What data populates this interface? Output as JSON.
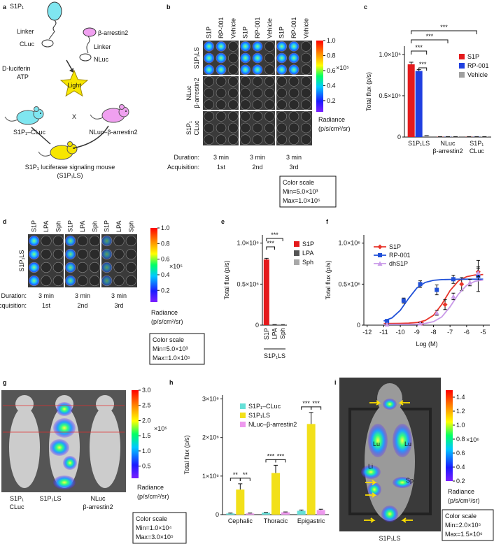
{
  "panel_labels": [
    "a",
    "b",
    "c",
    "d",
    "e",
    "f",
    "g",
    "h",
    "i"
  ],
  "a": {
    "texts": [
      "S1P₁",
      "Linker",
      "β-arrestin2",
      "CLuc",
      "Linker",
      "NLuc",
      "D-luciferin",
      "ATP",
      "Light",
      "S1P₁–CLuc",
      "X",
      "NLuc–β-arrestin2",
      "S1P₁ luciferase signaling mouse",
      "(S1P₁LS)"
    ]
  },
  "b": {
    "columns": [
      "S1P",
      "RP-001",
      "Vehicle"
    ],
    "rows": [
      [
        "S1P₁LS"
      ],
      [
        "NLuc",
        "β-arrestin2"
      ],
      [
        "S1P₁",
        "CLuc"
      ]
    ],
    "duration_label": "Duration:",
    "durations": [
      "3 min",
      "3 min",
      "3 min"
    ],
    "acquisition_label": "Acquisition:",
    "acquisitions": [
      "1st",
      "2nd",
      "3rd"
    ],
    "colorbar": {
      "lim": [
        0.05,
        1
      ],
      "ticks": [
        {
          "value": 1,
          "label": "1.0"
        },
        0.8,
        0.6,
        0.4,
        0.2
      ],
      "multiplier": "×10⁵",
      "label": [
        "Radiance",
        "(p/s/cm²/sr)"
      ]
    },
    "color_scale": [
      "Color scale",
      "Min=5.0×10³",
      "Max=1.0×10⁵"
    ]
  },
  "d": {
    "columns": [
      "S1P",
      "LPA",
      "Sph"
    ],
    "rows": [
      [
        "S1P₁LS"
      ]
    ],
    "duration_label": "Duration:",
    "durations": [
      "3 min",
      "3 min",
      "3 min"
    ],
    "acquisition_label": "Acquisition:",
    "acquisitions": [
      "1st",
      "2nd",
      "3rd"
    ],
    "colorbar": {
      "lim": [
        0.05,
        1
      ],
      "ticks": [
        {
          "value": 1,
          "label": "1.0"
        },
        0.8,
        0.6,
        0.4,
        0.2
      ],
      "multiplier": "×10⁵",
      "label": [
        "Radiance",
        "(p/s/cm²/sr)"
      ]
    },
    "color_scale": [
      "Color scale",
      "Min=5.0×10³",
      "Max=1.0×10⁵"
    ]
  },
  "g": {
    "labels": [
      [
        "S1P₁",
        "CLuc"
      ],
      [
        "S1P₁LS"
      ],
      [
        "NLuc",
        "β-arrestin2"
      ]
    ],
    "colorbar": {
      "lim": [
        0.1,
        3
      ],
      "ticks": [
        {
          "value": 3,
          "label": "3.0"
        },
        2.5,
        {
          "value": 2,
          "label": "2.0"
        },
        1.5,
        {
          "value": 1,
          "label": "1.0"
        },
        0.5
      ],
      "multiplier": "×10⁵",
      "label": [
        "Radiance",
        "(p/s/cm²/sr)"
      ]
    },
    "color_scale": [
      "Color scale",
      "Min=1.0×10⁴",
      "Max=3.0×10⁵"
    ]
  },
  "i": {
    "labels": [
      "Lu",
      "Lu",
      "Li",
      "Sp"
    ],
    "caption": "S1P₁LS",
    "colorbar": {
      "lim": [
        0.2,
        1.5
      ],
      "ticks": [
        1.4,
        1.2,
        {
          "value": 1,
          "label": "1.0"
        },
        0.8,
        0.6,
        0.4,
        0.2
      ],
      "multiplier": "×10⁶",
      "label": [
        "Radiance",
        "(p/s/cm²/sr)"
      ]
    },
    "color_scale": [
      "Color scale",
      "Min=2.0×10⁵",
      "Max=1.5×10⁶"
    ]
  },
  "chart_data": [
    {
      "type": "bar",
      "ylabel": "Total flux (p/s)",
      "categories": [
        [
          "S1P₁LS"
        ],
        [
          "NLuc",
          "β-arrestin2"
        ],
        [
          "S1P₁",
          "CLuc"
        ]
      ],
      "series": [
        {
          "name": "S1P",
          "color": "#e41a1c",
          "values": [
            880000,
            3000,
            3000
          ],
          "errors": [
            25000,
            1000,
            1000
          ]
        },
        {
          "name": "RP-001",
          "color": "#2040e0",
          "values": [
            800000,
            3000,
            3000
          ],
          "errors": [
            15000,
            1000,
            1000
          ]
        },
        {
          "name": "Vehicle",
          "color": "#a0a0a0",
          "values": [
            15000,
            3000,
            3000
          ],
          "errors": [
            2000,
            1000,
            1000
          ]
        }
      ],
      "ylim": [
        0,
        1100000
      ],
      "yticks": [
        0,
        {
          "value": 500000,
          "label": "0.5×10⁶"
        },
        {
          "value": 1000000,
          "label": "1.0×10⁶"
        }
      ],
      "annotations": [
        "***",
        "***",
        "***",
        "***"
      ]
    },
    {
      "type": "bar",
      "ylabel": "Total flux (p/s)",
      "categories": [
        "S1P",
        "LPA",
        "Sph"
      ],
      "values": [
        800000,
        6000,
        5000
      ],
      "errors": [
        15000,
        1000,
        1000
      ],
      "colors": [
        "#e41a1c",
        "#555555",
        "#a8a8a8"
      ],
      "xlabel": "S1P₁LS",
      "ylim": [
        0,
        1100000
      ],
      "yticks": [
        0,
        {
          "value": 500000,
          "label": "0.5×10⁶"
        },
        {
          "value": 1000000,
          "label": "1.0×10⁶"
        }
      ],
      "annotations": [
        "***",
        "***"
      ]
    },
    {
      "type": "line",
      "ylabel": "Total flux (p/s)",
      "xlabel": "Log (M)",
      "xlim": [
        -12.2,
        -4.6
      ],
      "xticks": [
        -12,
        -11,
        -10,
        -9,
        -8,
        -7,
        -6,
        -5
      ],
      "ylim": [
        0,
        1100000
      ],
      "yticks": [
        0,
        {
          "value": 500000,
          "label": "0.5×10⁶"
        },
        {
          "value": 1000000,
          "label": "1.0×10⁶"
        }
      ],
      "series": [
        {
          "name": "S1P",
          "color": "#e8352b",
          "marker": "diamond",
          "x": [
            -10.8,
            -8.7,
            -7.3,
            -6.3,
            -5.3
          ],
          "values": [
            20000,
            20000,
            250000,
            500000,
            650000
          ],
          "errors": [
            10000,
            10000,
            60000,
            80000,
            60000
          ],
          "fit_x": [
            -11,
            -10.5,
            -10,
            -9.5,
            -9,
            -8.5,
            -8,
            -7.5,
            -7,
            -6.5,
            -6,
            -5.5,
            -5
          ],
          "fit": [
            20000,
            20000,
            21000,
            24000,
            32000,
            56000,
            120000,
            252000,
            420000,
            538000,
            591000,
            611000,
            617000
          ]
        },
        {
          "name": "RP-001",
          "color": "#2050d8",
          "marker": "square",
          "x": [
            -10.8,
            -9.8,
            -8.8,
            -7.8,
            -6.8,
            -5.3
          ],
          "values": [
            50000,
            300000,
            500000,
            430000,
            560000,
            600000
          ],
          "errors": [
            15000,
            30000,
            40000,
            60000,
            50000,
            190000
          ],
          "fit_x": [
            -11,
            -10.5,
            -10,
            -9.5,
            -9,
            -8.5,
            -8,
            -7.5,
            -7,
            -6.5,
            -6,
            -5.5,
            -5
          ],
          "fit": [
            50000,
            89000,
            181000,
            325000,
            454000,
            521000,
            547000,
            555000,
            558000,
            560000,
            560000,
            560000,
            560000
          ]
        },
        {
          "name": "dhS1P",
          "color": "#c99ae8",
          "marker": "triangle",
          "x": [
            -10.8,
            -8.8,
            -7.8,
            -6.8,
            -5.8,
            -5.3
          ],
          "values": [
            10000,
            20000,
            150000,
            350000,
            520000,
            640000
          ],
          "errors": [
            5000,
            10000,
            30000,
            40000,
            40000,
            50000
          ],
          "fit_x": [
            -11,
            -10.5,
            -10,
            -9.5,
            -9,
            -8.5,
            -8,
            -7.5,
            -7,
            -6.5,
            -6,
            -5.5,
            -5
          ],
          "fit": [
            10000,
            10000,
            10000,
            10000,
            11000,
            21000,
            43000,
            100000,
            223000,
            376000,
            485000,
            534000,
            551000
          ]
        }
      ]
    },
    {
      "type": "bar",
      "ylabel": "Total flux (p/s)",
      "categories": [
        "Cephalic",
        "Thoracic",
        "Epigastric"
      ],
      "series": [
        {
          "name": "S1P₁–CLuc",
          "color": "#66e0d8",
          "values": [
            30000,
            50000,
            100000
          ],
          "errors": [
            10000,
            10000,
            20000
          ]
        },
        {
          "name": "S1P₁LS",
          "color": "#f2e01a",
          "values": [
            650000,
            1080000,
            2350000
          ],
          "errors": [
            150000,
            200000,
            300000
          ]
        },
        {
          "name": "NLuc–β-arrestin2",
          "color": "#ee99ee",
          "values": [
            30000,
            60000,
            120000
          ],
          "errors": [
            10000,
            10000,
            20000
          ]
        }
      ],
      "ylim": [
        0,
        3100000
      ],
      "yticks": [
        0,
        {
          "value": 1000000,
          "label": "1×10⁶"
        },
        {
          "value": 2000000,
          "label": "2×10⁶"
        },
        {
          "value": 3000000,
          "label": "3×10⁶"
        }
      ],
      "annotations": [
        [
          "**",
          "**"
        ],
        [
          "***",
          "***"
        ],
        [
          "***",
          "***"
        ]
      ]
    }
  ]
}
